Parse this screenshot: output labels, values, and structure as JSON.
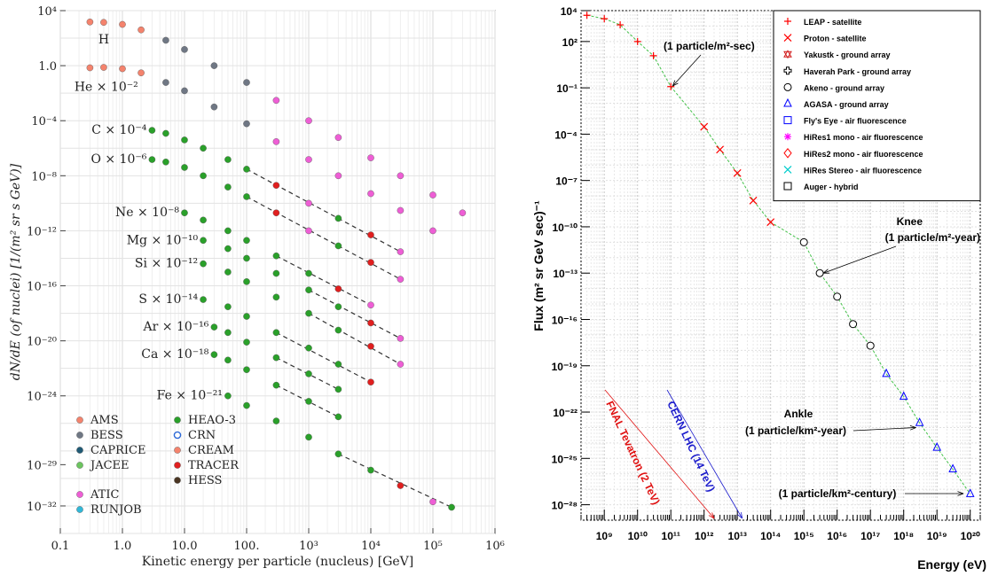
{
  "chart_data": [
    {
      "type": "scatter",
      "xlabel": "Kinetic energy per particle (nucleus)    [GeV]",
      "ylabel": "dN/dE (of nuclei)   [1/(m² sr s GeV)]",
      "xscale": "log",
      "yscale": "log",
      "xlim": [
        0.1,
        1000000
      ],
      "ylim": [
        1e-34,
        10000.0
      ],
      "x_ticks": [
        "0.1",
        "1.0",
        "10.0",
        "100.",
        "10³",
        "10⁴",
        "10⁵",
        "10⁶"
      ],
      "y_ticks": [
        "10⁴",
        "1.0",
        "10⁻⁴",
        "10⁻⁸",
        "10⁻¹²",
        "10⁻¹⁶",
        "10⁻²⁰",
        "10⁻²⁴",
        "10⁻²⁹",
        "10⁻³²"
      ],
      "grid": true,
      "legend": {
        "placement": "bottom-left",
        "entries": [
          {
            "name": "AMS",
            "color": "#f4836d",
            "marker": "filled-circle"
          },
          {
            "name": "BESS",
            "color": "#6f7784",
            "marker": "filled-circle"
          },
          {
            "name": "CAPRICE",
            "color": "#1f5a75",
            "marker": "filled-circle"
          },
          {
            "name": "JACEE",
            "color": "#6cc55f",
            "marker": "filled-circle"
          },
          {
            "name": "ATIC",
            "color": "#ee5ed5",
            "marker": "filled-circle"
          },
          {
            "name": "RUNJOB",
            "color": "#31b8d8",
            "marker": "filled-circle"
          },
          {
            "name": "HEAO-3",
            "color": "#2aa02a",
            "marker": "filled-circle"
          },
          {
            "name": "CRN",
            "color": "#2a67d6",
            "marker": "open-circle"
          },
          {
            "name": "CREAM",
            "color": "#f4836d",
            "marker": "filled-circle"
          },
          {
            "name": "TRACER",
            "color": "#e01f1f",
            "marker": "filled-circle"
          },
          {
            "name": "HESS",
            "color": "#4a3522",
            "marker": "filled-circle"
          }
        ]
      },
      "series": [
        {
          "name": "H",
          "points": [
            [
              0.3,
              1500
            ],
            [
              0.5,
              1400
            ],
            [
              1,
              1000
            ],
            [
              2,
              400
            ],
            [
              5,
              70
            ],
            [
              10,
              15
            ],
            [
              30,
              1.0
            ],
            [
              100,
              0.06
            ],
            [
              300,
              0.003
            ],
            [
              1000,
              0.0001
            ],
            [
              3000,
              6e-06
            ],
            [
              10000,
              2e-07
            ],
            [
              30000,
              1e-08
            ],
            [
              100000,
              4e-10
            ],
            [
              300000,
              2e-11
            ]
          ]
        },
        {
          "name": "He × 10⁻²",
          "points": [
            [
              0.3,
              0.7
            ],
            [
              0.5,
              0.75
            ],
            [
              1,
              0.6
            ],
            [
              2,
              0.3
            ],
            [
              5,
              0.06
            ],
            [
              10,
              0.015
            ],
            [
              30,
              0.001
            ],
            [
              100,
              6e-05
            ],
            [
              300,
              3e-06
            ],
            [
              1000,
              1.5e-07
            ],
            [
              3000,
              1e-08
            ],
            [
              10000,
              5e-10
            ],
            [
              30000,
              3e-11
            ],
            [
              100000,
              1e-12
            ]
          ]
        },
        {
          "name": "C × 10⁻⁴",
          "points": [
            [
              3,
              2e-05
            ],
            [
              5,
              1.2e-05
            ],
            [
              10,
              4e-06
            ],
            [
              20,
              1e-06
            ],
            [
              50,
              1.5e-07
            ],
            [
              100,
              3e-08
            ],
            [
              300,
              2e-09
            ],
            [
              1000,
              1e-10
            ],
            [
              3000,
              8e-12
            ],
            [
              10000,
              5e-13
            ],
            [
              30000,
              3e-14
            ]
          ]
        },
        {
          "name": "O × 10⁻⁶",
          "points": [
            [
              3,
              1.5e-07
            ],
            [
              5,
              1e-07
            ],
            [
              10,
              4e-08
            ],
            [
              20,
              1e-08
            ],
            [
              50,
              1.5e-09
            ],
            [
              100,
              3e-10
            ],
            [
              300,
              2e-11
            ],
            [
              1000,
              1e-12
            ],
            [
              3000,
              8e-14
            ],
            [
              10000,
              5e-15
            ],
            [
              30000,
              3e-16
            ]
          ]
        },
        {
          "name": "Ne × 10⁻⁸",
          "points": [
            [
              10,
              2e-11
            ],
            [
              20,
              6e-12
            ],
            [
              50,
              1e-12
            ],
            [
              100,
              2e-13
            ],
            [
              300,
              1.5e-14
            ],
            [
              1000,
              8e-16
            ],
            [
              3000,
              6e-17
            ],
            [
              10000,
              4e-18
            ]
          ]
        },
        {
          "name": "Mg × 10⁻¹⁰",
          "points": [
            [
              20,
              2e-13
            ],
            [
              50,
              5e-14
            ],
            [
              100,
              1e-14
            ],
            [
              300,
              8e-16
            ],
            [
              1000,
              5e-17
            ],
            [
              3000,
              3e-18
            ],
            [
              10000,
              2e-19
            ],
            [
              30000,
              1.5e-20
            ]
          ]
        },
        {
          "name": "Si × 10⁻¹²",
          "points": [
            [
              20,
              4e-15
            ],
            [
              50,
              1e-15
            ],
            [
              100,
              2e-16
            ],
            [
              300,
              1.5e-17
            ],
            [
              1000,
              1e-18
            ],
            [
              3000,
              6e-20
            ],
            [
              10000,
              4e-21
            ],
            [
              30000,
              2e-22
            ]
          ]
        },
        {
          "name": "S × 10⁻¹⁴",
          "points": [
            [
              20,
              1e-17
            ],
            [
              50,
              3e-18
            ],
            [
              100,
              6e-19
            ],
            [
              300,
              4e-20
            ],
            [
              1000,
              3e-21
            ],
            [
              3000,
              2e-22
            ],
            [
              10000,
              1e-23
            ]
          ]
        },
        {
          "name": "Ar × 10⁻¹⁶",
          "points": [
            [
              30,
              1e-19
            ],
            [
              50,
              4e-20
            ],
            [
              100,
              8e-21
            ],
            [
              300,
              6e-22
            ],
            [
              1000,
              4e-23
            ],
            [
              3000,
              3e-24
            ]
          ]
        },
        {
          "name": "Ca × 10⁻¹⁸",
          "points": [
            [
              30,
              1e-21
            ],
            [
              50,
              4e-22
            ],
            [
              100,
              8e-23
            ],
            [
              300,
              6e-24
            ],
            [
              1000,
              4e-25
            ],
            [
              3000,
              3e-26
            ]
          ]
        },
        {
          "name": "Fe × 10⁻²¹",
          "points": [
            [
              50,
              1e-24
            ],
            [
              100,
              2e-25
            ],
            [
              300,
              1.5e-26
            ],
            [
              1000,
              1e-27
            ],
            [
              3000,
              6e-29
            ],
            [
              10000,
              4e-30
            ],
            [
              30000,
              3e-31
            ],
            [
              100000,
              2e-32
            ],
            [
              200000,
              8e-33
            ]
          ]
        }
      ]
    },
    {
      "type": "scatter",
      "xlabel": "Energy (eV)",
      "ylabel": "Flux (m² sr GeV sec)⁻¹",
      "xscale": "log",
      "yscale": "log",
      "xlim": [
        200000000.0,
        2e+20
      ],
      "ylim": [
        1e-29,
        10000.0
      ],
      "x_ticks": [
        "10⁹",
        "10¹⁰",
        "10¹¹",
        "10¹²",
        "10¹³",
        "10¹⁴",
        "10¹⁵",
        "10¹⁶",
        "10¹⁷",
        "10¹⁸",
        "10¹⁹",
        "10²⁰"
      ],
      "y_ticks": [
        "10⁴",
        "10²",
        "10⁻¹",
        "10⁻⁴",
        "10⁻⁷",
        "10⁻¹⁰",
        "10⁻¹³",
        "10⁻¹⁶",
        "10⁻¹⁹",
        "10⁻²²",
        "10⁻²⁵",
        "10⁻²⁸"
      ],
      "grid": true,
      "legend": {
        "placement": "top-right",
        "entries": [
          {
            "name": "LEAP - satellite",
            "color": "#ff0000",
            "marker": "plus"
          },
          {
            "name": "Proton - satellite",
            "color": "#ff0000",
            "marker": "x"
          },
          {
            "name": "Yakustk - ground array",
            "color": "#d11a1a",
            "marker": "star"
          },
          {
            "name": "Haverah Park - ground array",
            "color": "#000000",
            "marker": "open-plus"
          },
          {
            "name": "Akeno - ground array",
            "color": "#000000",
            "marker": "open-circle"
          },
          {
            "name": "AGASA - ground array",
            "color": "#0000ff",
            "marker": "open-triangle"
          },
          {
            "name": "Fly's Eye - air fluorescence",
            "color": "#0000ff",
            "marker": "open-square"
          },
          {
            "name": "HiRes1 mono - air fluorescence",
            "color": "#ff00ff",
            "marker": "asterisk"
          },
          {
            "name": "HiRes2 mono - air fluorescence",
            "color": "#ff0000",
            "marker": "open-diamond"
          },
          {
            "name": "HiRes Stereo - air fluorescence",
            "color": "#00cccc",
            "marker": "x"
          },
          {
            "name": "Auger - hybrid",
            "color": "#000000",
            "marker": "open-square"
          }
        ]
      },
      "annotations": [
        {
          "text": "(1 particle/m²-sec)",
          "x": 100000000000.0,
          "y": 0.1
        },
        {
          "text": "Knee",
          "x": 3000000000000000.0,
          "y": 1e-13
        },
        {
          "text": "(1 particle/m²-year)",
          "x": 3000000000000000.0,
          "y": 1e-13
        },
        {
          "text": "Ankle",
          "x": 3e+18,
          "y": 1e-23
        },
        {
          "text": "(1 particle/km²-year)",
          "x": 3e+18,
          "y": 1e-23
        },
        {
          "text": "(1 particle/km²-century)",
          "x": 8e+19,
          "y": 1e-27
        },
        {
          "text": "FNAL Tevatron (2 TeV)",
          "x": 2000000000000.0
        },
        {
          "text": "CERN LHC (14 TeV)",
          "x": 14000000000000.0
        }
      ],
      "series": [
        {
          "name": "LEAP - satellite",
          "points": [
            [
              300000000.0,
              5000
            ],
            [
              1000000000.0,
              3000
            ],
            [
              3000000000.0,
              1200
            ],
            [
              10000000000.0,
              100
            ],
            [
              30000000000.0,
              12
            ],
            [
              100000000000.0,
              0.12
            ]
          ]
        },
        {
          "name": "Proton - satellite",
          "points": [
            [
              1000000000000.0,
              0.0003
            ],
            [
              3000000000000.0,
              1e-05
            ],
            [
              10000000000000.0,
              3e-07
            ],
            [
              30000000000000.0,
              5e-09
            ],
            [
              100000000000000.0,
              2e-10
            ]
          ]
        },
        {
          "name": "Akeno - ground array",
          "points": [
            [
              1000000000000000.0,
              1e-11
            ],
            [
              3000000000000000.0,
              1e-13
            ],
            [
              1e+16,
              3e-15
            ],
            [
              3e+16,
              5e-17
            ],
            [
              1e+17,
              2e-18
            ]
          ]
        },
        {
          "name": "AGASA - ground array",
          "points": [
            [
              3e+17,
              3e-20
            ],
            [
              1e+18,
              1e-21
            ],
            [
              3e+18,
              2e-23
            ],
            [
              1e+19,
              5e-25
            ],
            [
              3e+19,
              2e-26
            ],
            [
              1e+20,
              5e-28
            ]
          ]
        }
      ]
    }
  ]
}
